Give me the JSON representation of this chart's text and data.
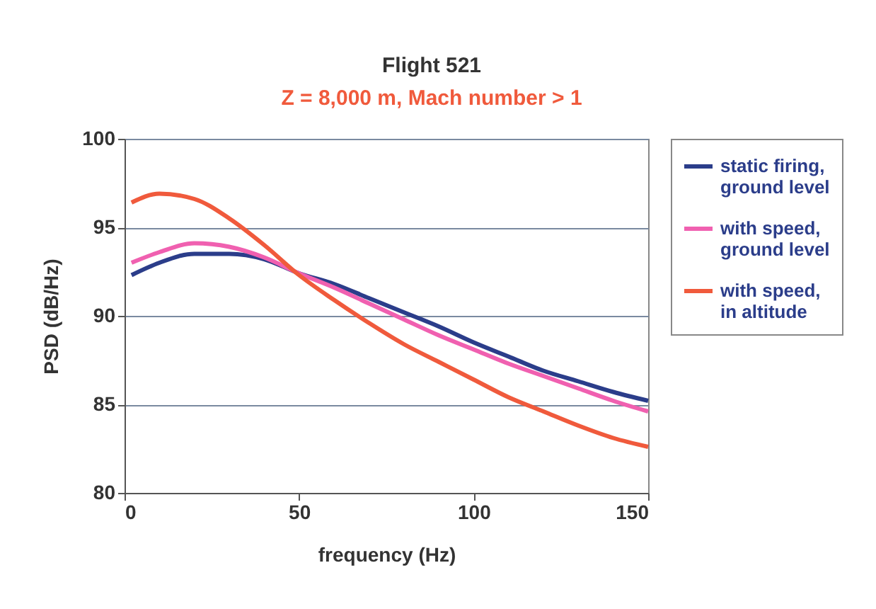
{
  "chart_data": {
    "type": "line",
    "title": "Flight 521",
    "subtitle": "Z = 8,000 m, Mach number > 1",
    "xlabel": "frequency  (Hz)",
    "ylabel": "PSD  (dB/Hz)",
    "x": [
      2,
      10,
      20,
      30,
      40,
      50,
      60,
      70,
      80,
      90,
      100,
      110,
      120,
      130,
      140,
      150
    ],
    "series": [
      {
        "name": "static firing, ground level",
        "color": "#2b3d8a",
        "values": [
          92.3,
          93.0,
          93.5,
          93.5,
          93.2,
          92.4,
          91.8,
          91.0,
          90.2,
          89.4,
          88.5,
          87.7,
          86.9,
          86.3,
          85.7,
          85.2
        ]
      },
      {
        "name": "with speed, ground level",
        "color": "#f060b0",
        "values": [
          93.0,
          93.6,
          94.1,
          93.9,
          93.3,
          92.4,
          91.6,
          90.7,
          89.8,
          88.9,
          88.1,
          87.3,
          86.6,
          85.9,
          85.2,
          84.6
        ]
      },
      {
        "name": "with speed, in altitude",
        "color": "#f05a3c",
        "values": [
          96.4,
          96.9,
          96.6,
          95.5,
          94.0,
          92.3,
          90.9,
          89.6,
          88.4,
          87.4,
          86.4,
          85.4,
          84.6,
          83.8,
          83.1,
          82.6
        ]
      }
    ],
    "xlim": [
      0,
      150
    ],
    "xticks": [
      0,
      50,
      100,
      150
    ],
    "ylim": [
      80,
      100
    ],
    "yticks": [
      80,
      85,
      90,
      95,
      100
    ],
    "grid": "y",
    "legend": "right",
    "marker": "none",
    "line_style": "solid"
  }
}
